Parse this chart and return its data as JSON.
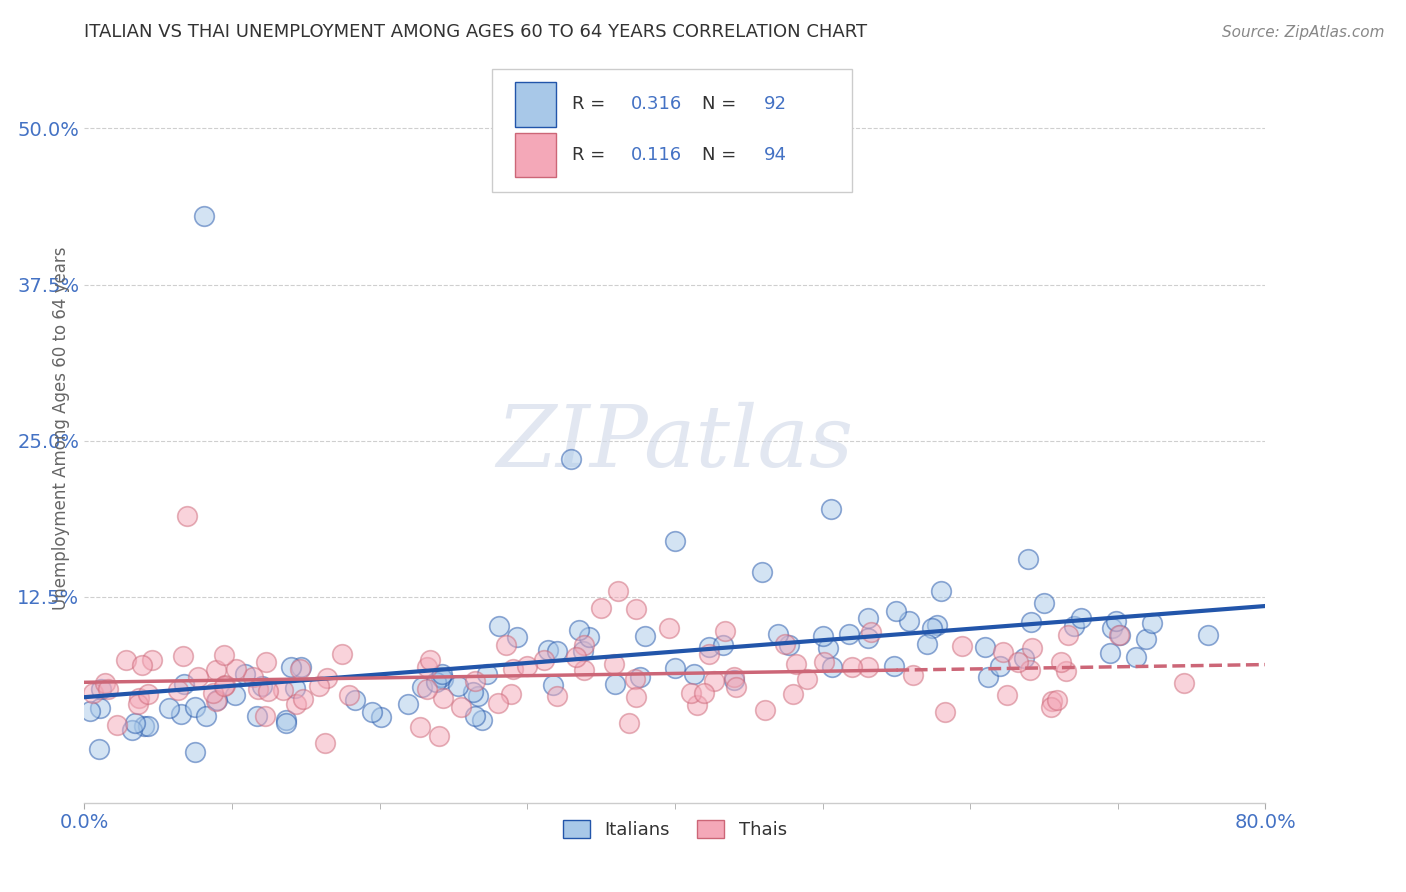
{
  "title": "ITALIAN VS THAI UNEMPLOYMENT AMONG AGES 60 TO 64 YEARS CORRELATION CHART",
  "source": "Source: ZipAtlas.com",
  "ylabel": "Unemployment Among Ages 60 to 64 years",
  "ytick_labels": [
    "12.5%",
    "25.0%",
    "37.5%",
    "50.0%"
  ],
  "ytick_values": [
    0.125,
    0.25,
    0.375,
    0.5
  ],
  "xlim": [
    0.0,
    0.8
  ],
  "ylim": [
    -0.04,
    0.56
  ],
  "italian_R": 0.316,
  "italian_N": 92,
  "thai_R": 0.116,
  "thai_N": 94,
  "italian_color": "#a8c8e8",
  "thai_color": "#f4a8b8",
  "italian_line_color": "#2255aa",
  "thai_line_color": "#cc6677",
  "legend_label_italian": "Italians",
  "legend_label_thai": "Thais",
  "watermark_text": "ZIPatlas",
  "title_color": "#333333",
  "axis_label_color": "#666666",
  "tick_color": "#4472c4",
  "background_color": "#ffffff",
  "grid_color": "#bbbbbb",
  "source_color": "#888888"
}
